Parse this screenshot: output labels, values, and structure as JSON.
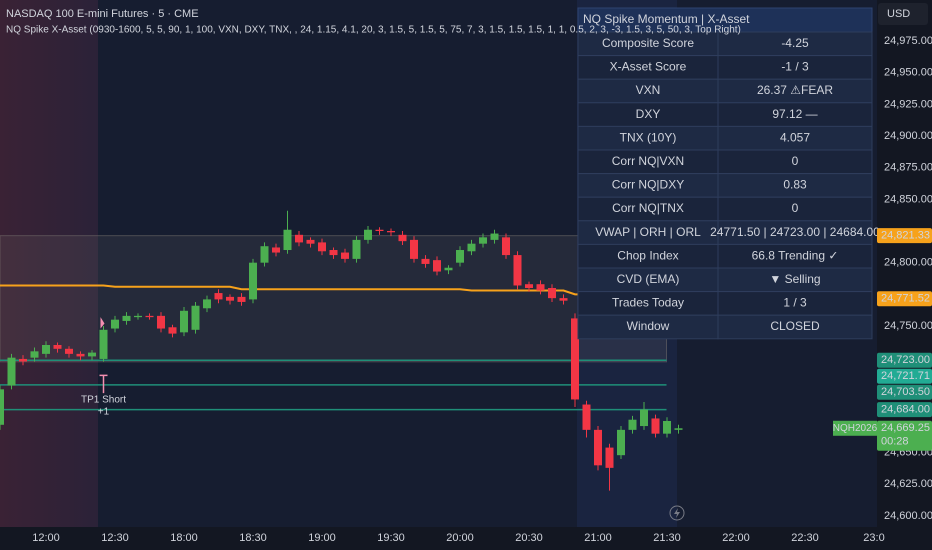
{
  "chart_data": {
    "type": "candlestick",
    "title": "NASDAQ 100 E-mini Futures · 5 · CME",
    "subtitle": "NQ Spike X-Asset (0930-1600, 5, 5, 90, 1, 100, VXN, DXY, TNX, , 24, 1.15, 4.1, 20, 3, 1.5, 5, 1.5, 5, 75, 7, 3, 1.5, 1.5, 1.5, 1, 1, 0.5, 2, 3, -3, 1.5, 3, 5, 50, 3, Top Right)",
    "currency": "USD",
    "categories": [
      null,
      null,
      null,
      null,
      "12:00",
      null,
      null,
      null,
      null,
      null,
      "12:30",
      null,
      null,
      null,
      null,
      null,
      "18:00",
      null,
      null,
      null,
      null,
      null,
      "18:30",
      null,
      null,
      null,
      null,
      null,
      "19:00",
      null,
      null,
      null,
      null,
      null,
      "19:30",
      null,
      null,
      null,
      null,
      null,
      "20:00",
      null,
      null,
      null,
      null,
      null,
      "20:30",
      null,
      null,
      null,
      null,
      null,
      "21:00",
      null,
      null,
      null,
      null,
      null,
      "21:30",
      null,
      null,
      null,
      null,
      null,
      "22:00",
      null,
      null,
      null,
      null,
      null,
      "22:30",
      null,
      null,
      null,
      null,
      null,
      "23:0"
    ],
    "open": [
      24672,
      24703,
      24724,
      24725,
      24728,
      24735,
      24732,
      24728,
      24726,
      24724,
      24748,
      24754,
      24757,
      24758,
      24758,
      24749,
      24745,
      24747,
      24764,
      24776,
      24773,
      24773,
      24771,
      24800,
      24812,
      24810,
      24822,
      24818,
      24816,
      24810,
      24808,
      24803,
      24818,
      24826,
      24825,
      24822,
      24818,
      24803,
      24802,
      24794,
      24800,
      24809,
      24815,
      24818,
      24820,
      24806,
      24783,
      24783,
      24780,
      24772,
      24756,
      24688,
      24668,
      24654,
      24648,
      24668,
      24671,
      24677,
      24665,
      24668,
      null,
      null,
      null,
      null,
      null,
      null,
      null,
      null,
      null,
      null,
      null,
      null,
      null,
      null,
      null,
      null,
      null
    ],
    "high": [
      24703,
      24728,
      24727,
      24733,
      24738,
      24737,
      24734,
      24730,
      24731,
      24750,
      24758,
      24761,
      24760,
      24760,
      24761,
      24751,
      24765,
      24769,
      24774,
      24779,
      24775,
      24776,
      24803,
      24816,
      24815,
      24841,
      24825,
      24820,
      24819,
      24812,
      24811,
      24821,
      24829,
      24828,
      24827,
      24825,
      24821,
      24806,
      24805,
      24798,
      24813,
      24818,
      24823,
      24826,
      24823,
      24809,
      24785,
      24786,
      24783,
      24775,
      24760,
      24691,
      24671,
      24657,
      24671,
      24679,
      24690,
      24680,
      24678,
      24672,
      null,
      null,
      null,
      null,
      null,
      null,
      null,
      null,
      null,
      null,
      null,
      null,
      null,
      null,
      null,
      null,
      null
    ],
    "low": [
      24668,
      24700,
      24719,
      24722,
      24725,
      24729,
      24725,
      24723,
      24723,
      24722,
      24745,
      24751,
      24755,
      24755,
      24745,
      24741,
      24742,
      24744,
      24761,
      24768,
      24767,
      24766,
      24768,
      24797,
      24805,
      24807,
      24813,
      24812,
      24806,
      24803,
      24800,
      24800,
      24815,
      24822,
      24821,
      24814,
      24800,
      24796,
      24790,
      24791,
      24797,
      24806,
      24812,
      24815,
      24803,
      24779,
      24777,
      24775,
      24769,
      24767,
      24686,
      24662,
      24636,
      24620,
      24645,
      24665,
      24668,
      24662,
      24662,
      24665,
      null,
      null,
      null,
      null,
      null,
      null,
      null,
      null,
      null,
      null,
      null,
      null,
      null,
      null,
      null,
      null,
      null
    ],
    "close": [
      24700,
      24725,
      24722,
      24730,
      24735,
      24732,
      24728,
      24726,
      24729,
      24747,
      24755,
      24758,
      24758,
      24757,
      24748,
      24744,
      24762,
      24766,
      24771,
      24771,
      24770,
      24769,
      24800,
      24813,
      24808,
      24826,
      24816,
      24815,
      24809,
      24806,
      24803,
      24818,
      24826,
      24825,
      24824,
      24817,
      24803,
      24799,
      24793,
      24796,
      24810,
      24815,
      24820,
      24823,
      24806,
      24782,
      24780,
      24778,
      24772,
      24770,
      24692,
      24668,
      24640,
      24638,
      24668,
      24676,
      24684,
      24665,
      24675,
      24669.25,
      null,
      null,
      null,
      null,
      null,
      null,
      null,
      null,
      null,
      null,
      null,
      null,
      null,
      null,
      null,
      null,
      null
    ],
    "up_color": "#4caf50",
    "down_color": "#f23645",
    "vwap": {
      "color": "#f7a21b",
      "values": [
        24782,
        24782,
        24782,
        24782,
        24782,
        24782,
        24782,
        24782,
        24782,
        24782,
        24781,
        24781,
        24781,
        24781,
        24781,
        24781,
        24781,
        24781,
        24781,
        24781,
        24781,
        24779,
        24779,
        24779,
        24779,
        24779,
        24779,
        24779,
        24779,
        24779,
        24779,
        24779,
        24779,
        24779,
        24779,
        24779,
        24779,
        24779,
        24779,
        24779,
        24779,
        24778,
        24778,
        24778,
        24778,
        24778,
        24778,
        24778,
        24778,
        24778,
        24775,
        24775,
        24775,
        24775,
        24775,
        24775,
        24775,
        24775,
        24775,
        24771.52,
        null,
        null,
        null,
        null,
        null,
        null,
        null,
        null,
        null,
        null,
        null,
        null,
        null,
        null,
        null,
        null,
        null
      ]
    },
    "ylim": [
      24591.3,
      25007.4
    ],
    "yticks": [
      {
        "value": 24600,
        "label": "24,600.00"
      },
      {
        "value": 24625,
        "label": "24,625.00"
      },
      {
        "value": 24650,
        "label": "24,650.00"
      },
      {
        "value": 24750,
        "label": "24,750.00"
      },
      {
        "value": 24800,
        "label": "24,800.00"
      },
      {
        "value": 24850,
        "label": "24,850.00"
      },
      {
        "value": 24875,
        "label": "24,875.00"
      },
      {
        "value": 24900,
        "label": "24,900.00"
      },
      {
        "value": 24925,
        "label": "24,925.00"
      },
      {
        "value": 24950,
        "label": "24,950.00"
      },
      {
        "value": 24975,
        "label": "24,975.00"
      }
    ],
    "grid": false,
    "price_labels": [
      {
        "value": 24821.33,
        "label": "24,821.33",
        "color": "#f7a21b",
        "band": "upper"
      },
      {
        "value": 24771.52,
        "label": "24,771.52",
        "color": "#f7a21b"
      },
      {
        "value": 24723,
        "label": "24,723.00",
        "color": "#1f8f78",
        "line": true
      },
      {
        "value": 24721.71,
        "label": "24,721.71",
        "color": "#22ab94",
        "band": "lower"
      },
      {
        "value": 24703.5,
        "label": "24,703.50",
        "color": "#1f8f78",
        "line": true
      },
      {
        "value": 24684,
        "label": "24,684.00",
        "color": "#1f8f78",
        "line": true
      },
      {
        "value": 24669.25,
        "label": "24,669.25",
        "color": "#4caf50",
        "countdown": "00:28",
        "symbol": "NQH2026"
      }
    ],
    "annotations": [
      "TP1 Short",
      "+1"
    ],
    "table": {
      "title": "NQ Spike Momentum | X-Asset",
      "rows": [
        {
          "label": "Composite Score",
          "value": "-4.25",
          "color": "#f23645"
        },
        {
          "label": "X-Asset Score",
          "value": "-1 / 3",
          "color": "#f23645"
        },
        {
          "label": "VXN",
          "value": "26.37 ⚠FEAR",
          "color": "#f23645"
        },
        {
          "label": "DXY",
          "value": "97.12 —",
          "color": "#787b86"
        },
        {
          "label": "TNX (10Y)",
          "value": "4.057",
          "color": "#787b86"
        },
        {
          "label": "Corr NQ|VXN",
          "value": "0",
          "color": "#ffffff"
        },
        {
          "label": "Corr NQ|DXY",
          "value": "0.83",
          "color": "#ffffff"
        },
        {
          "label": "Corr NQ|TNX",
          "value": "0",
          "color": "#ffffff"
        },
        {
          "label": "VWAP | ORH | ORL",
          "value": "24771.50 | 24723.00 | 24684.00",
          "color": "#ffffff"
        },
        {
          "label": "Chop Index",
          "value": "66.8 Trending ✓",
          "color": "#26a69a"
        },
        {
          "label": "CVD (EMA)",
          "value": "▼ Selling",
          "color": "#f23645"
        },
        {
          "label": "Trades Today",
          "value": "1 / 3",
          "color": "#ffffff"
        },
        {
          "label": "Window",
          "value": "CLOSED",
          "color": "#f23645"
        }
      ]
    }
  }
}
